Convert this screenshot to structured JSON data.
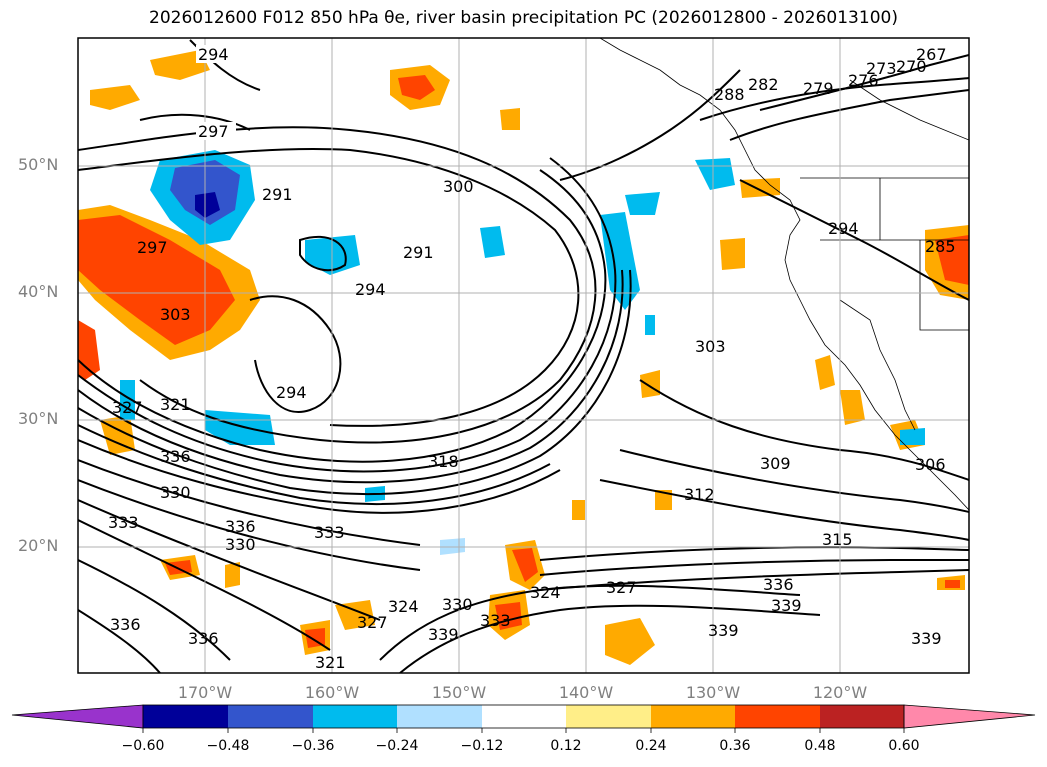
{
  "title": "2026012600 F012 850 hPa θe, river basin precipitation PC (2026012800 - 2026013100)",
  "map": {
    "latitude_labels": [
      "50°N",
      "40°N",
      "30°N",
      "20°N"
    ],
    "longitude_labels": [
      "170°W",
      "160°W",
      "150°W",
      "140°W",
      "130°W",
      "120°W"
    ],
    "contour_labels": [
      "294",
      "297",
      "291",
      "300",
      "291",
      "294",
      "297",
      "303",
      "294",
      "327",
      "321",
      "330",
      "333",
      "336",
      "330",
      "336",
      "333",
      "318",
      "303",
      "309",
      "312",
      "315",
      "327",
      "324",
      "336",
      "339",
      "339",
      "339",
      "330",
      "339",
      "324",
      "327",
      "333",
      "321",
      "336",
      "336",
      "288",
      "282",
      "279",
      "276",
      "273",
      "270",
      "267",
      "294",
      "285",
      "306"
    ],
    "colors": {
      "contour": "#000000",
      "gridline": "#b0b0b0",
      "coastline": "#000000"
    }
  },
  "colorbar": {
    "ticks": [
      "−0.60",
      "−0.48",
      "−0.36",
      "−0.24",
      "−0.12",
      "0.12",
      "0.24",
      "0.36",
      "0.48",
      "0.60"
    ],
    "colors": [
      "#9933cc",
      "#000099",
      "#3355cc",
      "#00bbee",
      "#b0e0ff",
      "#ffffff",
      "#ffee88",
      "#ffaa00",
      "#ff4400",
      "#bb2222",
      "#ff88aa"
    ]
  }
}
